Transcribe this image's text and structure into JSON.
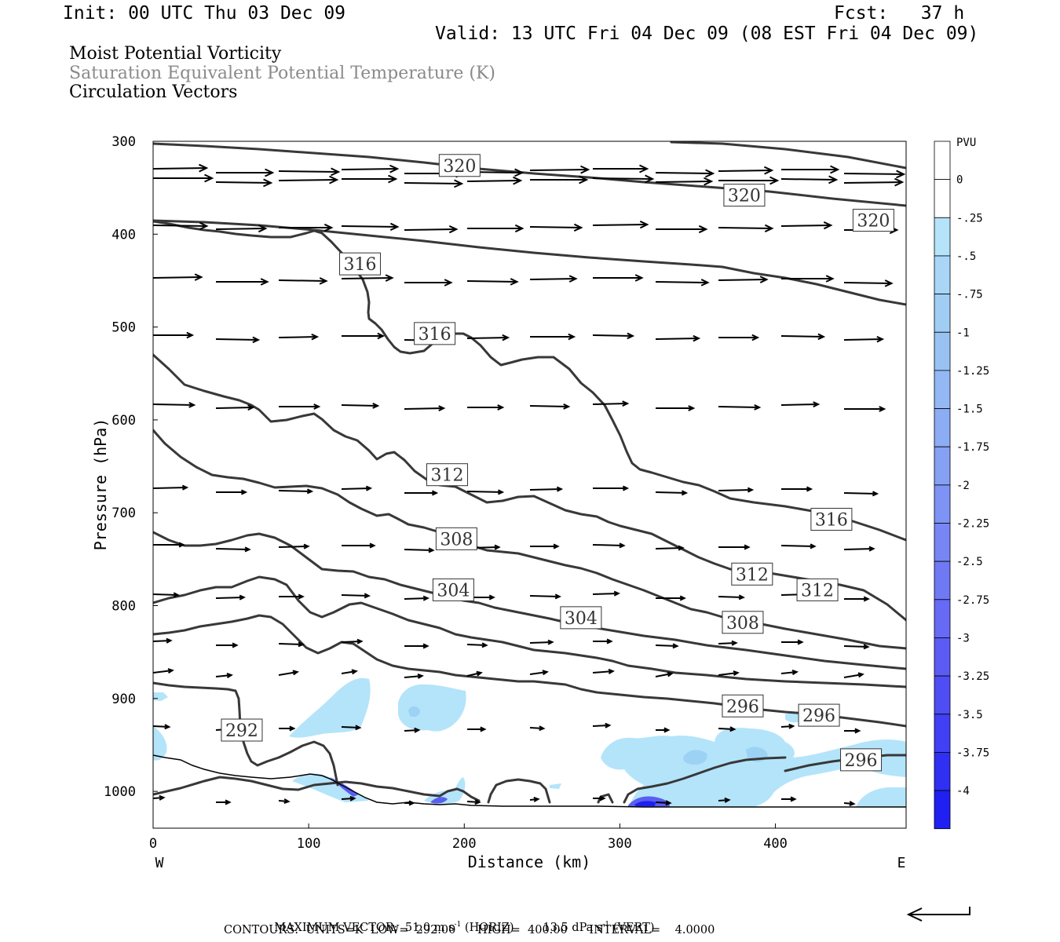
{
  "header": {
    "init": "Init: 00 UTC Thu 03 Dec 09",
    "fcst": "Fcst:   37 h",
    "valid": "Valid: 13 UTC Fri 04 Dec 09 (08 EST Fri 04 Dec 09)"
  },
  "titles": {
    "line1": "Moist Potential Vorticity",
    "line2": "Saturation Equivalent Potential Temperature (K)",
    "line3": "Circulation Vectors"
  },
  "footer": {
    "max_vector_label": "MAXIMUM VECTOR:",
    "horiz_value": "51.0 m s",
    "horiz_unit": " (HORIZ)",
    "vert_value": "13.5 dPa s",
    "vert_unit": " (VERT)",
    "exp": "-1",
    "contours_line": "CONTOURS:  UNITS=K  LOW=  292.00      HIGH=  400.00      INTERVAL=    4.0000"
  },
  "colors": {
    "contour": "#383838",
    "arrow": "#000000",
    "pv_light": "#b4e4fa",
    "pv_mid": "#9cd2f4",
    "pv_strong": "#5a5ef0",
    "pv_max": "#1f1ff2"
  },
  "chart_data": {
    "type": "cross-section",
    "xlabel": "Distance (km)",
    "ylabel": "Pressure (hPa)",
    "x_ticks": [
      0,
      100,
      200,
      300,
      400
    ],
    "y_ticks": [
      300,
      400,
      500,
      600,
      700,
      800,
      900,
      1000
    ],
    "xlim": [
      0,
      484
    ],
    "ylim_hpa": [
      300,
      1040
    ],
    "y_inverted": true,
    "left_end_label": "W",
    "right_end_label": "E",
    "colorbar": {
      "title": "PVU",
      "levels": [
        "0",
        "-.25",
        "-.5",
        "-.75",
        "-1",
        "-1.25",
        "-1.5",
        "-1.75",
        "-2",
        "-2.25",
        "-2.5",
        "-2.75",
        "-3",
        "-3.25",
        "-3.5",
        "-3.75",
        "-4"
      ],
      "colors": [
        "#ffffff",
        "#ffffff",
        "#b5e3fa",
        "#a9d6f7",
        "#a0cdf4",
        "#99c2f2",
        "#93b8f3",
        "#8cacf3",
        "#86a0f4",
        "#7f93f4",
        "#7786f4",
        "#6f79f4",
        "#666af4",
        "#5c5cf4",
        "#4f4ef4",
        "#4140f4",
        "#3030f2",
        "#2020f2"
      ]
    },
    "contour_labels": [
      {
        "text": "320",
        "x": 197,
        "p": 326
      },
      {
        "text": "320",
        "x": 380,
        "p": 358
      },
      {
        "text": "320",
        "x": 463,
        "p": 385
      },
      {
        "text": "316",
        "x": 133,
        "p": 432
      },
      {
        "text": "316",
        "x": 181,
        "p": 507
      },
      {
        "text": "316",
        "x": 436,
        "p": 707
      },
      {
        "text": "312",
        "x": 189,
        "p": 659
      },
      {
        "text": "312",
        "x": 385,
        "p": 766
      },
      {
        "text": "312",
        "x": 427,
        "p": 783
      },
      {
        "text": "308",
        "x": 195,
        "p": 728
      },
      {
        "text": "308",
        "x": 379,
        "p": 818
      },
      {
        "text": "304",
        "x": 193,
        "p": 783
      },
      {
        "text": "304",
        "x": 275,
        "p": 813
      },
      {
        "text": "296",
        "x": 379,
        "p": 908
      },
      {
        "text": "296",
        "x": 428,
        "p": 918
      },
      {
        "text": "296",
        "x": 455,
        "p": 966
      },
      {
        "text": "292",
        "x": 57,
        "p": 934
      }
    ]
  }
}
